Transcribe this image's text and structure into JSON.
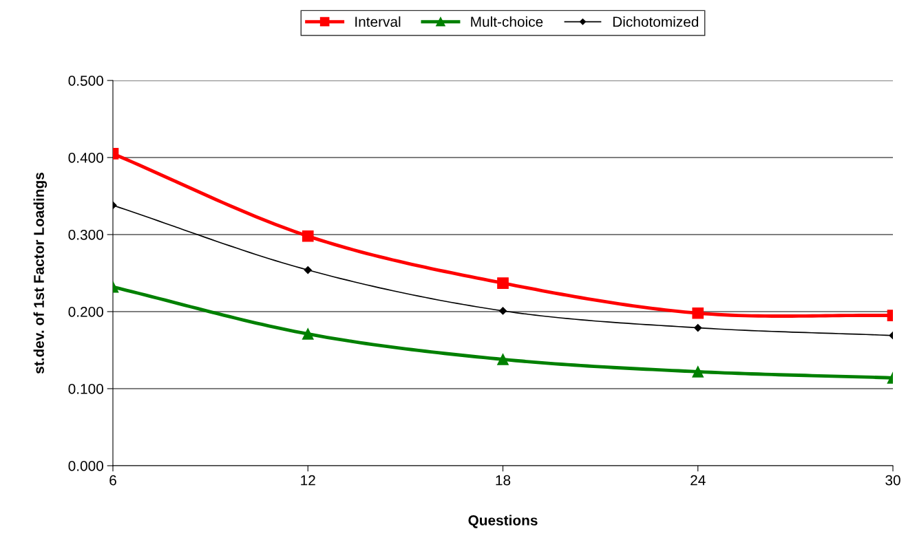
{
  "chart_data": {
    "type": "line",
    "xlabel": "Questions",
    "ylabel": "st.dev. of 1st Factor Loadings",
    "x": [
      6,
      12,
      18,
      24,
      30
    ],
    "series": [
      {
        "name": "Interval",
        "color": "#ff0000",
        "marker": "square",
        "values": [
          0.405,
          0.298,
          0.237,
          0.198,
          0.195
        ]
      },
      {
        "name": "Mult-choice",
        "color": "#008000",
        "marker": "triangle",
        "values": [
          0.232,
          0.171,
          0.138,
          0.122,
          0.114
        ]
      },
      {
        "name": "Dichotomized",
        "color": "#000000",
        "marker": "diamond",
        "values": [
          0.338,
          0.254,
          0.201,
          0.179,
          0.169
        ]
      }
    ],
    "xlim": [
      6,
      30
    ],
    "xticks": [
      6,
      12,
      18,
      24,
      30
    ],
    "ylim": [
      0,
      0.5
    ],
    "yticks": [
      {
        "value": 0,
        "label": "0.000"
      },
      {
        "value": 0.1,
        "label": "0.100"
      },
      {
        "value": 0.2,
        "label": "0.200"
      },
      {
        "value": 0.3,
        "label": "0.300"
      },
      {
        "value": 0.4,
        "label": "0.400"
      },
      {
        "value": 0.5,
        "label": "0.500"
      }
    ],
    "grid": "y",
    "legend": "top"
  }
}
